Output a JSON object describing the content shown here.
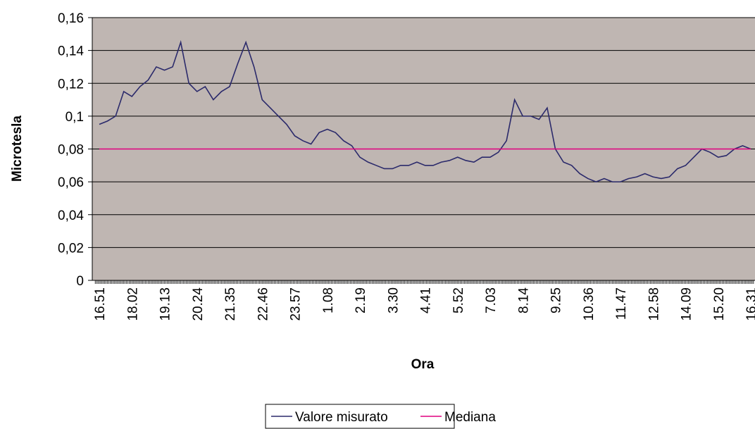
{
  "chart_data": {
    "type": "line",
    "xlabel": "Ora",
    "ylabel": "Microtesla",
    "categories": [
      "16.51",
      null,
      null,
      null,
      "18.02",
      null,
      null,
      null,
      "19.13",
      null,
      null,
      null,
      "20.24",
      null,
      null,
      null,
      "21.35",
      null,
      null,
      null,
      "22.46",
      null,
      null,
      null,
      "23.57",
      null,
      null,
      null,
      "1.08",
      null,
      null,
      null,
      "2.19",
      null,
      null,
      null,
      "3.30",
      null,
      null,
      null,
      "4.41",
      null,
      null,
      null,
      "5.52",
      null,
      null,
      null,
      "7.03",
      null,
      null,
      null,
      "8.14",
      null,
      null,
      null,
      "9.25",
      null,
      null,
      null,
      "10.36",
      null,
      null,
      null,
      "11.47",
      null,
      null,
      null,
      "12.58",
      null,
      null,
      null,
      "14.09",
      null,
      null,
      null,
      "15.20",
      null,
      null,
      null,
      "16.31"
    ],
    "series": [
      {
        "name": "Valore misurato",
        "color": "#2b2a6b",
        "values": [
          0.095,
          0.097,
          0.1,
          0.115,
          0.112,
          0.118,
          0.122,
          0.13,
          0.128,
          0.13,
          0.145,
          0.12,
          0.115,
          0.118,
          0.11,
          0.115,
          0.118,
          0.132,
          0.145,
          0.13,
          0.11,
          0.105,
          0.1,
          0.095,
          0.088,
          0.085,
          0.083,
          0.09,
          0.092,
          0.09,
          0.085,
          0.082,
          0.075,
          0.072,
          0.07,
          0.068,
          0.068,
          0.07,
          0.07,
          0.072,
          0.07,
          0.07,
          0.072,
          0.073,
          0.075,
          0.073,
          0.072,
          0.075,
          0.075,
          0.078,
          0.085,
          0.11,
          0.1,
          0.1,
          0.098,
          0.105,
          0.08,
          0.072,
          0.07,
          0.065,
          0.062,
          0.06,
          0.062,
          0.06,
          0.06,
          0.062,
          0.063,
          0.065,
          0.063,
          0.062,
          0.063,
          0.068,
          0.07,
          0.075,
          0.08,
          0.078,
          0.075,
          0.076,
          0.08,
          0.082,
          0.08
        ]
      },
      {
        "name": "Mediana",
        "color": "#e0007f",
        "values": [
          0.08,
          0.08,
          0.08,
          0.08,
          0.08,
          0.08,
          0.08,
          0.08,
          0.08,
          0.08,
          0.08,
          0.08,
          0.08,
          0.08,
          0.08,
          0.08,
          0.08,
          0.08,
          0.08,
          0.08,
          0.08,
          0.08,
          0.08,
          0.08,
          0.08,
          0.08,
          0.08,
          0.08,
          0.08,
          0.08,
          0.08,
          0.08,
          0.08,
          0.08,
          0.08,
          0.08,
          0.08,
          0.08,
          0.08,
          0.08,
          0.08,
          0.08,
          0.08,
          0.08,
          0.08,
          0.08,
          0.08,
          0.08,
          0.08,
          0.08,
          0.08,
          0.08,
          0.08,
          0.08,
          0.08,
          0.08,
          0.08,
          0.08,
          0.08,
          0.08,
          0.08,
          0.08,
          0.08,
          0.08,
          0.08,
          0.08,
          0.08,
          0.08,
          0.08,
          0.08,
          0.08,
          0.08,
          0.08,
          0.08,
          0.08,
          0.08,
          0.08,
          0.08,
          0.08,
          0.08,
          0.08
        ]
      }
    ],
    "ylim": [
      0,
      0.16
    ],
    "yticks": [
      0,
      {
        "value": 0.02,
        "label": "0,02"
      },
      {
        "value": 0.04,
        "label": "0,04"
      },
      {
        "value": 0.06,
        "label": "0,06"
      },
      {
        "value": 0.08,
        "label": "0,08"
      },
      {
        "value": 0.1,
        "label": "0,1"
      },
      {
        "value": 0.12,
        "label": "0,12"
      },
      {
        "value": 0.14,
        "label": "0,14"
      },
      {
        "value": 0.16,
        "label": "0,16"
      }
    ],
    "grid": true,
    "plot_color": "#bfb6b2",
    "legend": "bottom"
  }
}
